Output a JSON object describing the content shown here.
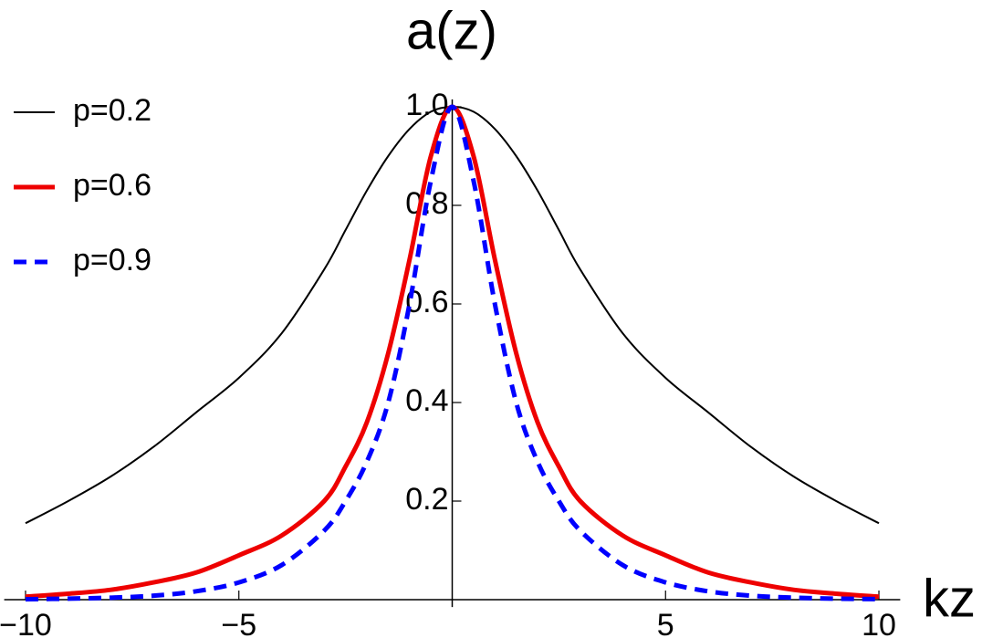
{
  "chart_data": {
    "type": "line",
    "title": "a(z)",
    "x_label": "kz",
    "x": [
      -10,
      -9,
      -8,
      -7,
      -6,
      -5,
      -4,
      -3,
      -2.5,
      -2,
      -1.5,
      -1,
      -0.5,
      0,
      0.5,
      1,
      1.5,
      2,
      2.5,
      3,
      4,
      5,
      6,
      7,
      8,
      9,
      10
    ],
    "series": [
      {
        "name": "p=0.2",
        "color": "#000000",
        "width": 2,
        "dashed": false,
        "values": [
          0.155,
          0.2,
          0.25,
          0.31,
          0.38,
          0.45,
          0.54,
          0.67,
          0.75,
          0.83,
          0.9,
          0.955,
          0.99,
          1,
          0.99,
          0.955,
          0.9,
          0.83,
          0.75,
          0.67,
          0.54,
          0.45,
          0.38,
          0.31,
          0.25,
          0.2,
          0.155
        ]
      },
      {
        "name": "p=0.6",
        "color": "#ee0000",
        "width": 5,
        "dashed": false,
        "values": [
          0.006,
          0.012,
          0.02,
          0.035,
          0.055,
          0.09,
          0.13,
          0.2,
          0.27,
          0.36,
          0.5,
          0.69,
          0.9,
          1,
          0.9,
          0.69,
          0.5,
          0.36,
          0.27,
          0.2,
          0.13,
          0.09,
          0.055,
          0.035,
          0.02,
          0.012,
          0.006
        ]
      },
      {
        "name": "p=0.9",
        "color": "#0000ff",
        "width": 5,
        "dashed": true,
        "values": [
          0.001,
          0.002,
          0.004,
          0.008,
          0.017,
          0.035,
          0.07,
          0.14,
          0.2,
          0.28,
          0.4,
          0.6,
          0.85,
          1,
          0.85,
          0.6,
          0.4,
          0.28,
          0.2,
          0.14,
          0.07,
          0.035,
          0.017,
          0.008,
          0.004,
          0.002,
          0.001
        ]
      }
    ],
    "xlim": [
      -10.5,
      10.5
    ],
    "xticks": [
      {
        "value": -10,
        "label": "−10"
      },
      {
        "value": -5,
        "label": "−5"
      },
      5,
      10
    ],
    "ylim": [
      -0.015,
      1.015
    ],
    "yticks": [
      0.2,
      0.4,
      0.6,
      0.8,
      {
        "value": 1,
        "label": "1.0"
      }
    ],
    "legend": "top-left"
  }
}
